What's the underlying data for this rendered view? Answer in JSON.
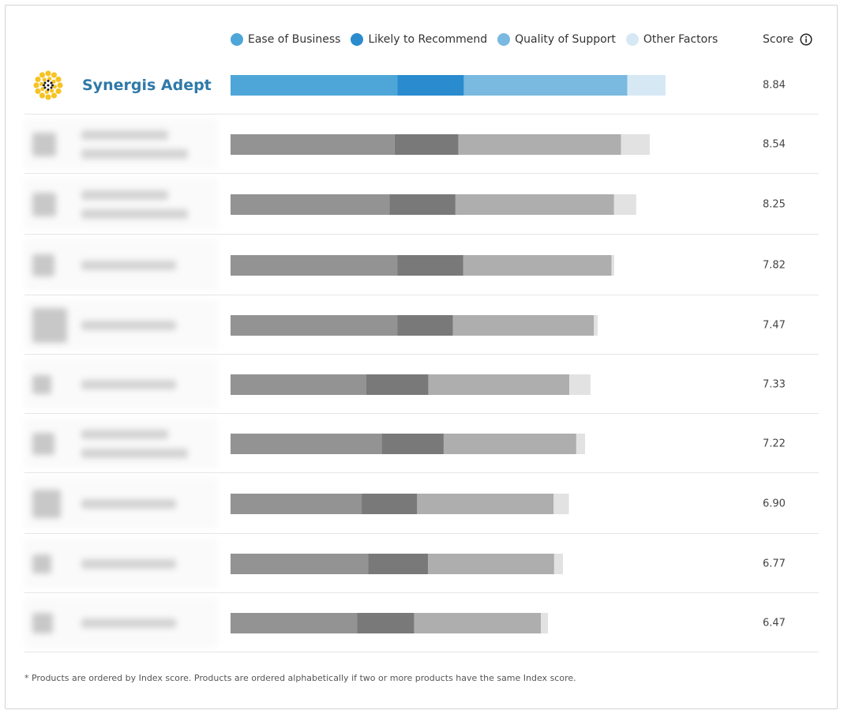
{
  "legend": {
    "items": [
      {
        "label": "Ease of Business",
        "color": "#4ea6d8"
      },
      {
        "label": "Likely to Recommend",
        "color": "#2a8cce"
      },
      {
        "label": "Quality of Support",
        "color": "#7ab9e0"
      },
      {
        "label": "Other Factors",
        "color": "#d7e8f5"
      }
    ]
  },
  "score_header": {
    "label": "Score",
    "icon": "info-circle-icon"
  },
  "highlight_colors": [
    "#4ea6d8",
    "#2a8cce",
    "#7ab9e0",
    "#d7e8f5"
  ],
  "muted_colors": [
    "#939393",
    "#797979",
    "#aeaeae",
    "#e2e2e2"
  ],
  "chart_data": {
    "type": "bar",
    "stacked": true,
    "orientation": "horizontal",
    "series_names": [
      "Ease of Business",
      "Likely to Recommend",
      "Quality of Support",
      "Other Factors"
    ],
    "products": [
      {
        "name": "Synergis Adept",
        "highlighted": true,
        "score": "8.84",
        "segments": [
          3.4,
          1.35,
          3.33,
          0.78
        ]
      },
      {
        "name": "",
        "highlighted": false,
        "score": "8.54",
        "segments": [
          3.34,
          1.3,
          3.31,
          0.59
        ]
      },
      {
        "name": "",
        "highlighted": false,
        "score": "8.25",
        "segments": [
          3.24,
          1.34,
          3.23,
          0.45
        ]
      },
      {
        "name": "",
        "highlighted": false,
        "score": "7.82",
        "segments": [
          3.4,
          1.34,
          3.02,
          0.06
        ]
      },
      {
        "name": "",
        "highlighted": false,
        "score": "7.47",
        "segments": [
          3.4,
          1.13,
          2.87,
          0.08
        ]
      },
      {
        "name": "",
        "highlighted": false,
        "score": "7.33",
        "segments": [
          2.76,
          1.27,
          2.87,
          0.43
        ]
      },
      {
        "name": "",
        "highlighted": false,
        "score": "7.22",
        "segments": [
          3.08,
          1.26,
          2.7,
          0.18
        ]
      },
      {
        "name": "",
        "highlighted": false,
        "score": "6.90",
        "segments": [
          2.67,
          1.13,
          2.78,
          0.31
        ]
      },
      {
        "name": "",
        "highlighted": false,
        "score": "6.77",
        "segments": [
          2.8,
          1.22,
          2.57,
          0.18
        ]
      },
      {
        "name": "",
        "highlighted": false,
        "score": "6.47",
        "segments": [
          2.58,
          1.16,
          2.58,
          0.15
        ]
      }
    ]
  },
  "footnote": "* Products are ordered by Index score. Products are ordered alphabetically if two or more products have the same Index score."
}
